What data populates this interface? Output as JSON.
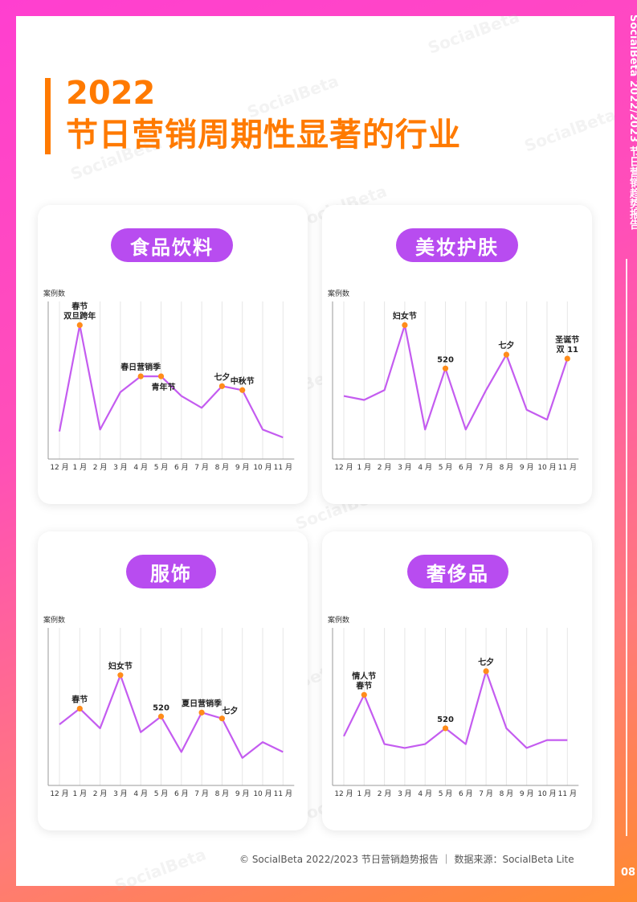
{
  "header": {
    "title_line1": "2022",
    "title_line2": "节日营销周期性显著的行业"
  },
  "sidebar": {
    "text": "SocialBeta 2022/2023 节日营销趋势报告",
    "page_number": "08"
  },
  "footer": {
    "text": "© SocialBeta 2022/2023 节日营销趋势报告 ｜ 数据来源：SocialBeta Lite"
  },
  "watermark": "SocialBeta",
  "colors": {
    "line": "#c45cf0",
    "marker": "#ff8c1a",
    "pill": "#b84cf0",
    "accent": "#ff7a00"
  },
  "chart_data": [
    {
      "type": "line",
      "title": "食品饮料",
      "ylabel": "案例数",
      "categories": [
        "12月",
        "1月",
        "2月",
        "3月",
        "4月",
        "5月",
        "6月",
        "7月",
        "8月",
        "9月",
        "10月",
        "11月"
      ],
      "values": [
        14,
        68,
        15,
        34,
        42,
        42,
        32,
        26,
        37,
        35,
        15,
        11
      ],
      "ylim": [
        0,
        80
      ],
      "annotations": [
        {
          "index": 1,
          "lines": [
            "春节",
            "双旦跨年"
          ],
          "pos": "above"
        },
        {
          "index": 4,
          "lines": [
            "春日营销季"
          ],
          "pos": "above"
        },
        {
          "index": 5,
          "lines": [
            "青年节"
          ],
          "pos": "below"
        },
        {
          "index": 8,
          "lines": [
            "七夕"
          ],
          "pos": "above"
        },
        {
          "index": 9,
          "lines": [
            "中秋节"
          ],
          "pos": "above"
        }
      ]
    },
    {
      "type": "line",
      "title": "美妆护肤",
      "ylabel": "案例数",
      "categories": [
        "12月",
        "1月",
        "2月",
        "3月",
        "4月",
        "5月",
        "6月",
        "7月",
        "8月",
        "9月",
        "10月",
        "11月"
      ],
      "values": [
        32,
        30,
        35,
        68,
        15,
        46,
        15,
        35,
        53,
        25,
        20,
        51
      ],
      "ylim": [
        0,
        80
      ],
      "annotations": [
        {
          "index": 3,
          "lines": [
            "妇女节"
          ],
          "pos": "above"
        },
        {
          "index": 5,
          "lines": [
            "520"
          ],
          "pos": "above"
        },
        {
          "index": 8,
          "lines": [
            "七夕"
          ],
          "pos": "above"
        },
        {
          "index": 11,
          "lines": [
            "圣诞节",
            "双 11"
          ],
          "pos": "above"
        }
      ]
    },
    {
      "type": "line",
      "title": "服饰",
      "ylabel": "案例数",
      "categories": [
        "12月",
        "1月",
        "2月",
        "3月",
        "4月",
        "5月",
        "6月",
        "7月",
        "8月",
        "9月",
        "10月",
        "11月"
      ],
      "values": [
        31,
        39,
        29,
        56,
        27,
        35,
        17,
        37,
        34,
        14,
        22,
        17
      ],
      "ylim": [
        0,
        80
      ],
      "annotations": [
        {
          "index": 1,
          "lines": [
            "春节"
          ],
          "pos": "above"
        },
        {
          "index": 3,
          "lines": [
            "妇女节"
          ],
          "pos": "above"
        },
        {
          "index": 5,
          "lines": [
            "520"
          ],
          "pos": "above"
        },
        {
          "index": 7,
          "lines": [
            "夏日营销季"
          ],
          "pos": "above"
        },
        {
          "index": 8,
          "lines": [
            "七夕"
          ],
          "pos": "aboveright"
        }
      ]
    },
    {
      "type": "line",
      "title": "奢侈品",
      "ylabel": "案例数",
      "categories": [
        "12月",
        "1月",
        "2月",
        "3月",
        "4月",
        "5月",
        "6月",
        "7月",
        "8月",
        "9月",
        "10月",
        "11月"
      ],
      "values": [
        25,
        46,
        21,
        19,
        21,
        29,
        21,
        58,
        29,
        19,
        23,
        23
      ],
      "ylim": [
        0,
        80
      ],
      "annotations": [
        {
          "index": 1,
          "lines": [
            "情人节",
            "春节"
          ],
          "pos": "above"
        },
        {
          "index": 5,
          "lines": [
            "520"
          ],
          "pos": "above"
        },
        {
          "index": 7,
          "lines": [
            "七夕"
          ],
          "pos": "above"
        }
      ]
    }
  ]
}
